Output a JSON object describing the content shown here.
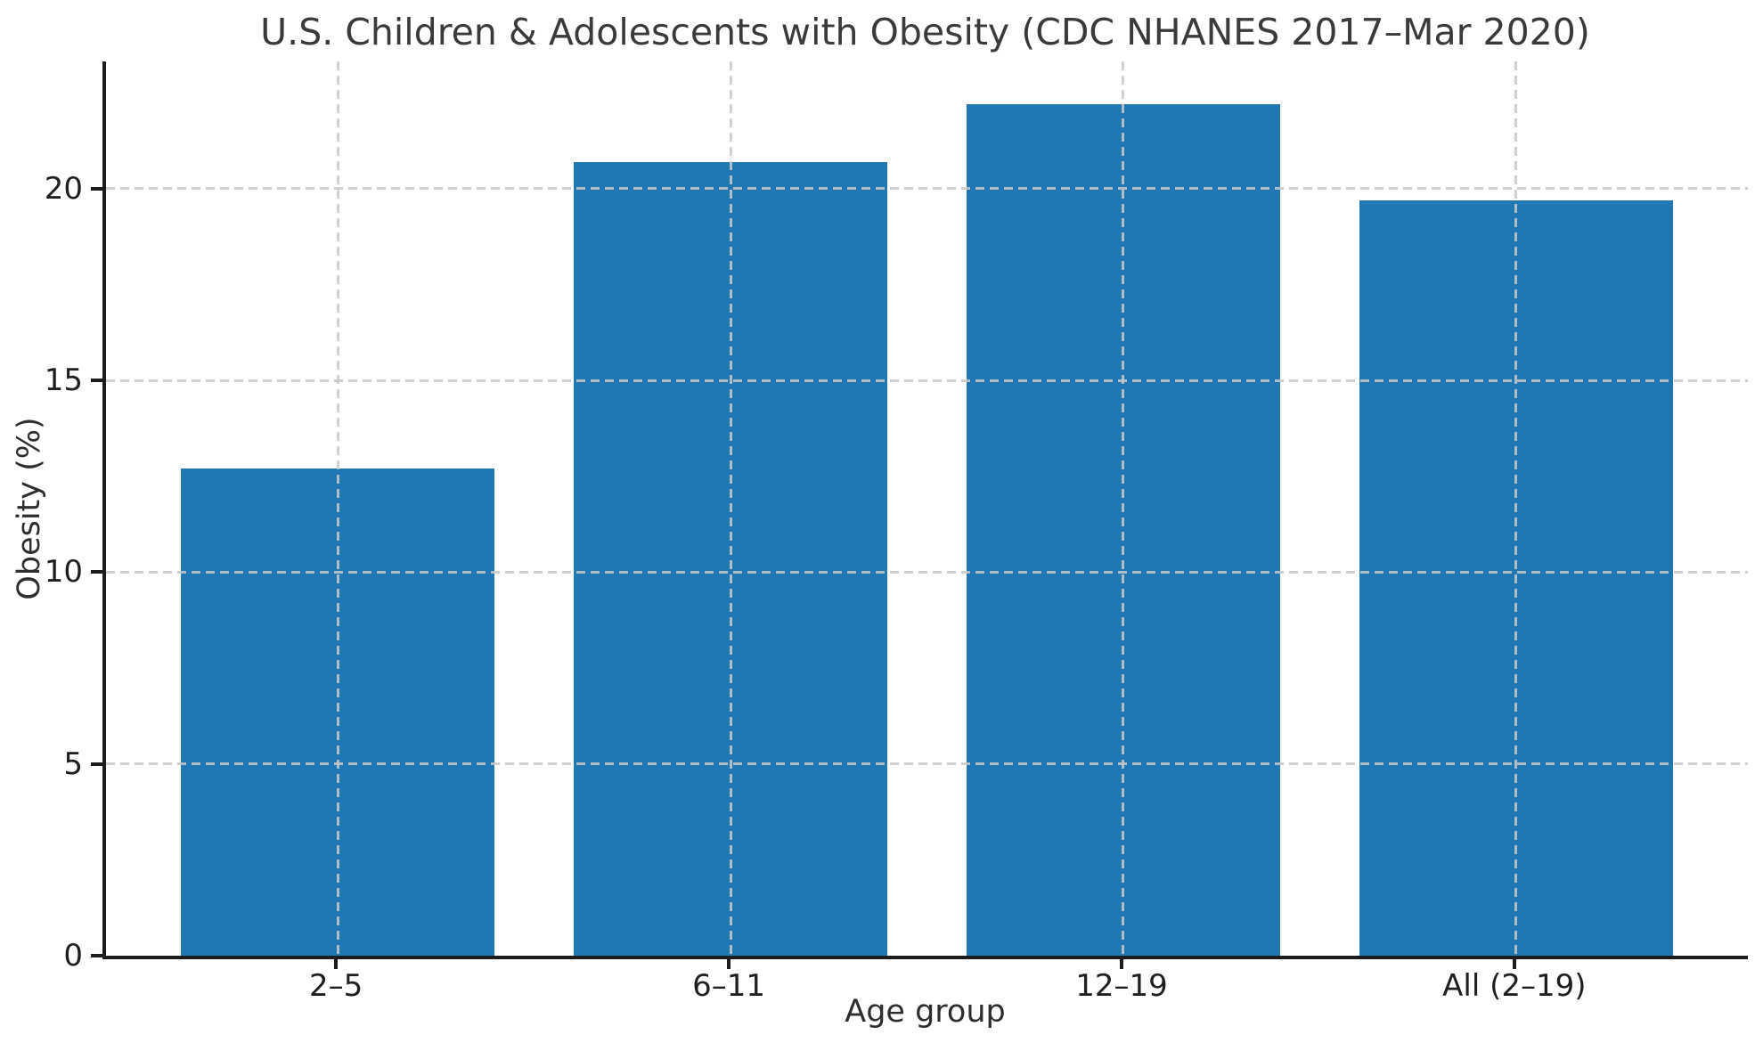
{
  "chart_data": {
    "type": "bar",
    "title": "U.S. Children & Adolescents with Obesity (CDC NHANES 2017–Mar 2020)",
    "xlabel": "Age group",
    "ylabel": "Obesity (%)",
    "categories": [
      "2–5",
      "6–11",
      "12–19",
      "All (2–19)"
    ],
    "values": [
      12.7,
      20.7,
      22.2,
      19.7
    ],
    "yticks": [
      0,
      5,
      10,
      15,
      20
    ],
    "ylim": [
      0,
      23.32
    ],
    "grid": true,
    "grid_style": "dashed",
    "grid_over_bars": true,
    "legend_position": "none",
    "colors": {
      "bar": "#1f77b4",
      "grid": "#c9c9c9",
      "spine": "#1c1c1c",
      "tick_text": "#1f1f1f",
      "title_text": "#3a3a3a",
      "background": "#ffffff"
    }
  }
}
